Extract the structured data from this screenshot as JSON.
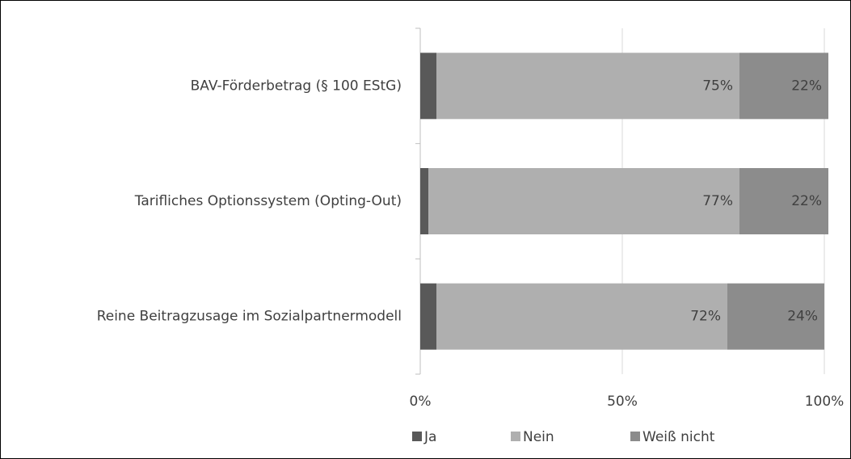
{
  "chart_data": {
    "type": "stacked_barh",
    "categories": [
      "BAV-Förderbetrag (§ 100 EStG)",
      "Tarifliches Optionssystem (Opting-Out)",
      "Reine Beitragzusage im Sozialpartnermodell"
    ],
    "series": [
      {
        "name": "Ja",
        "color": "#595959",
        "values": [
          4,
          2,
          4
        ],
        "value_labels": [
          "4%",
          "2%",
          "4%"
        ]
      },
      {
        "name": "Nein",
        "color": "#afafaf",
        "values": [
          75,
          77,
          72
        ],
        "value_labels": [
          "75%",
          "77%",
          "72%"
        ]
      },
      {
        "name": "Weiß nicht",
        "color": "#8c8c8c",
        "values": [
          22,
          22,
          24
        ],
        "value_labels": [
          "22%",
          "22%",
          "24%"
        ]
      }
    ],
    "xlim": [
      0,
      100
    ],
    "xticks": [
      {
        "value": 0,
        "label": "0%"
      },
      {
        "value": 50,
        "label": "50%"
      },
      {
        "value": 100,
        "label": "100%"
      }
    ],
    "grid": true,
    "legend": "bottom"
  }
}
